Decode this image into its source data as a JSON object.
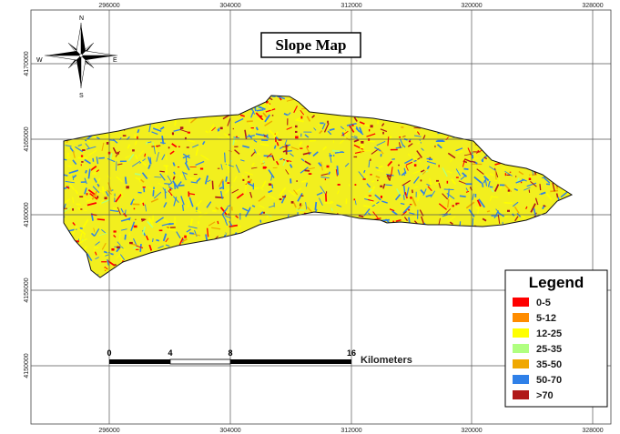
{
  "title": "Slope Map",
  "x_ticks": [
    "296000",
    "304000",
    "312000",
    "320000",
    "328000"
  ],
  "y_ticks": [
    "4170000",
    "4165000",
    "4160000",
    "4155000",
    "4150000"
  ],
  "north_arrow": {
    "icon": "north-arrow-compass-rose-icon",
    "n": "N",
    "s": "S",
    "e": "E",
    "w": "W"
  },
  "scale_bar": {
    "ticks": [
      "0",
      "4",
      "8",
      "16"
    ],
    "unit": "Kilometers"
  },
  "legend": {
    "title": "Legend",
    "items": [
      {
        "label": "0-5",
        "color": "#ff0000"
      },
      {
        "label": "5-12",
        "color": "#ff8c00"
      },
      {
        "label": "12-25",
        "color": "#ffff00"
      },
      {
        "label": "25-35",
        "color": "#b0ff80"
      },
      {
        "label": "35-50",
        "color": "#f0a800"
      },
      {
        "label": "50-70",
        "color": "#2f80e8"
      },
      {
        "label": ">70",
        "color": "#b01818"
      }
    ]
  }
}
